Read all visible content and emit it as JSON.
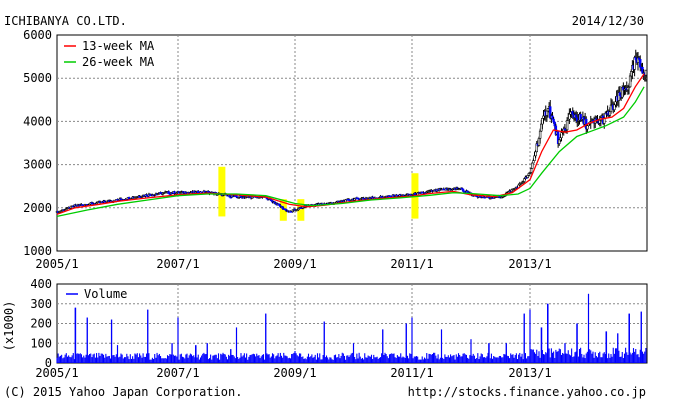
{
  "header": {
    "company": "ICHIBANYA CO.LTD.",
    "date": "2014/12/30"
  },
  "footer": {
    "copyright": "(C) 2015 Yahoo Japan Corporation.",
    "source": "http://stocks.finance.yahoo.co.jp"
  },
  "chart_data": [
    {
      "type": "candlestick",
      "x_tick_labels": [
        "2005/1",
        "2007/1",
        "2009/1",
        "2011/1",
        "2013/1"
      ],
      "y_tick_labels": [
        "1000",
        "2000",
        "3000",
        "4000",
        "5000",
        "6000"
      ],
      "ylim": [
        1000,
        6000
      ],
      "grid": true,
      "legend_position": "top-left",
      "series": [
        {
          "name": "13-week MA",
          "color": "#ff0000",
          "points": [
            [
              2005.0,
              1850
            ],
            [
              2005.3,
              2000
            ],
            [
              2005.7,
              2080
            ],
            [
              2006.0,
              2150
            ],
            [
              2006.5,
              2230
            ],
            [
              2007.0,
              2300
            ],
            [
              2007.5,
              2340
            ],
            [
              2008.0,
              2300
            ],
            [
              2008.5,
              2250
            ],
            [
              2008.9,
              2080
            ],
            [
              2009.2,
              2020
            ],
            [
              2009.5,
              2060
            ],
            [
              2010.0,
              2150
            ],
            [
              2010.5,
              2220
            ],
            [
              2011.0,
              2270
            ],
            [
              2011.3,
              2330
            ],
            [
              2011.7,
              2380
            ],
            [
              2012.0,
              2300
            ],
            [
              2012.4,
              2260
            ],
            [
              2012.7,
              2350
            ],
            [
              2013.0,
              2650
            ],
            [
              2013.2,
              3300
            ],
            [
              2013.4,
              3800
            ],
            [
              2013.6,
              3750
            ],
            [
              2013.8,
              3800
            ],
            [
              2014.0,
              3950
            ],
            [
              2014.2,
              4050
            ],
            [
              2014.4,
              4100
            ],
            [
              2014.6,
              4300
            ],
            [
              2014.8,
              4800
            ],
            [
              2014.95,
              5100
            ]
          ]
        },
        {
          "name": "26-week MA",
          "color": "#00cc00",
          "points": [
            [
              2005.0,
              1800
            ],
            [
              2005.5,
              1950
            ],
            [
              2006.0,
              2080
            ],
            [
              2006.5,
              2180
            ],
            [
              2007.0,
              2280
            ],
            [
              2007.5,
              2320
            ],
            [
              2008.0,
              2320
            ],
            [
              2008.5,
              2280
            ],
            [
              2009.0,
              2100
            ],
            [
              2009.3,
              2050
            ],
            [
              2009.8,
              2100
            ],
            [
              2010.3,
              2180
            ],
            [
              2010.8,
              2230
            ],
            [
              2011.3,
              2290
            ],
            [
              2011.7,
              2350
            ],
            [
              2012.0,
              2330
            ],
            [
              2012.5,
              2280
            ],
            [
              2012.8,
              2320
            ],
            [
              2013.0,
              2450
            ],
            [
              2013.2,
              2800
            ],
            [
              2013.5,
              3300
            ],
            [
              2013.8,
              3650
            ],
            [
              2014.0,
              3750
            ],
            [
              2014.3,
              3900
            ],
            [
              2014.6,
              4100
            ],
            [
              2014.8,
              4450
            ],
            [
              2014.95,
              4800
            ]
          ]
        }
      ],
      "price_path": [
        [
          2005.0,
          1900
        ],
        [
          2005.3,
          2050
        ],
        [
          2005.6,
          2100
        ],
        [
          2006.0,
          2180
        ],
        [
          2006.4,
          2280
        ],
        [
          2006.8,
          2350
        ],
        [
          2007.0,
          2350
        ],
        [
          2007.5,
          2360
        ],
        [
          2008.0,
          2250
        ],
        [
          2008.5,
          2250
        ],
        [
          2008.9,
          1900
        ],
        [
          2009.2,
          2050
        ],
        [
          2009.6,
          2100
        ],
        [
          2010.0,
          2200
        ],
        [
          2010.5,
          2250
        ],
        [
          2011.0,
          2300
        ],
        [
          2011.4,
          2400
        ],
        [
          2011.8,
          2450
        ],
        [
          2012.1,
          2250
        ],
        [
          2012.5,
          2250
        ],
        [
          2012.8,
          2500
        ],
        [
          2013.0,
          2800
        ],
        [
          2013.2,
          3900
        ],
        [
          2013.3,
          4400
        ],
        [
          2013.5,
          3500
        ],
        [
          2013.7,
          4200
        ],
        [
          2014.0,
          3900
        ],
        [
          2014.3,
          4100
        ],
        [
          2014.5,
          4500
        ],
        [
          2014.7,
          4900
        ],
        [
          2014.8,
          5400
        ],
        [
          2014.95,
          5200
        ]
      ],
      "highlights": [
        {
          "x": 2007.75,
          "low": 1800,
          "high": 2950
        },
        {
          "x": 2008.8,
          "low": 1700,
          "high": 2200
        },
        {
          "x": 2009.1,
          "low": 1700,
          "high": 2200
        },
        {
          "x": 2011.05,
          "low": 1750,
          "high": 2800
        }
      ]
    },
    {
      "type": "bar",
      "x_tick_labels": [
        "2005/1",
        "2007/1",
        "2009/1",
        "2011/1",
        "2013/1"
      ],
      "y_tick_labels": [
        "0",
        "100",
        "200",
        "300",
        "400"
      ],
      "ylabel": "(x1000)",
      "ylim": [
        0,
        400
      ],
      "grid": true,
      "series": [
        {
          "name": "Volume",
          "color": "#0000ff"
        }
      ],
      "baseline": 40,
      "spikes": [
        [
          2005.3,
          280
        ],
        [
          2005.5,
          230
        ],
        [
          2005.9,
          220
        ],
        [
          2006.0,
          90
        ],
        [
          2006.5,
          270
        ],
        [
          2006.9,
          100
        ],
        [
          2007.0,
          230
        ],
        [
          2007.3,
          90
        ],
        [
          2007.5,
          100
        ],
        [
          2007.9,
          70
        ],
        [
          2008.0,
          180
        ],
        [
          2008.5,
          250
        ],
        [
          2009.0,
          60
        ],
        [
          2009.5,
          210
        ],
        [
          2010.0,
          100
        ],
        [
          2010.5,
          170
        ],
        [
          2010.9,
          200
        ],
        [
          2011.0,
          230
        ],
        [
          2011.5,
          170
        ],
        [
          2012.0,
          120
        ],
        [
          2012.3,
          100
        ],
        [
          2012.6,
          100
        ],
        [
          2012.9,
          250
        ],
        [
          2013.0,
          270
        ],
        [
          2013.2,
          180
        ],
        [
          2013.3,
          300
        ],
        [
          2013.6,
          100
        ],
        [
          2013.8,
          200
        ],
        [
          2014.0,
          350
        ],
        [
          2014.3,
          160
        ],
        [
          2014.5,
          150
        ],
        [
          2014.7,
          250
        ],
        [
          2014.9,
          260
        ]
      ]
    }
  ]
}
